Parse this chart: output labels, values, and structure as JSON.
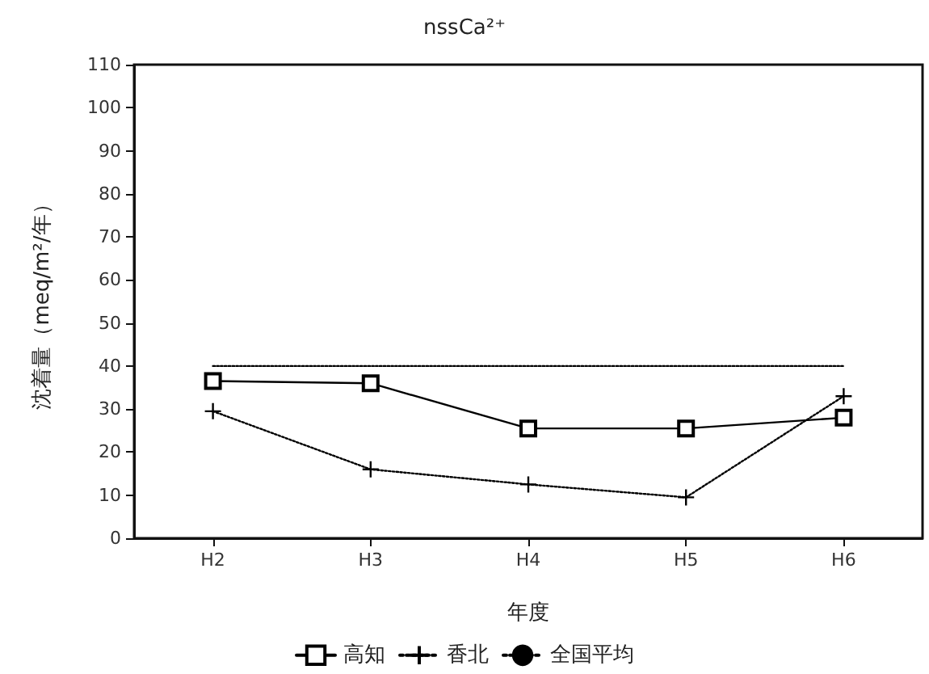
{
  "chart_data": {
    "type": "line",
    "title": "nssCa²⁺",
    "xlabel": "年度",
    "ylabel": "沈着量（meq/m²/年）",
    "categories": [
      "H2",
      "H3",
      "H4",
      "H5",
      "H6"
    ],
    "series": [
      {
        "name": "高知",
        "color": "#000000",
        "values": [
          36.5,
          36,
          25.5,
          25.5,
          28
        ],
        "marker": "square",
        "line_style": "solid"
      },
      {
        "name": "香北",
        "color": "#000000",
        "values": [
          29.5,
          16,
          12.5,
          9.5,
          33
        ],
        "marker": "cross",
        "line_style": "dotted"
      },
      {
        "name": "全国平均",
        "color": "#000000",
        "values": [
          40,
          40,
          40,
          40,
          40
        ],
        "marker": "none",
        "line_style": "dotted"
      }
    ],
    "ylim": [
      0,
      110
    ],
    "yticks": [
      0,
      10,
      20,
      30,
      40,
      50,
      60,
      70,
      80,
      90,
      100,
      110
    ],
    "grid": false,
    "legend": "bottom"
  }
}
